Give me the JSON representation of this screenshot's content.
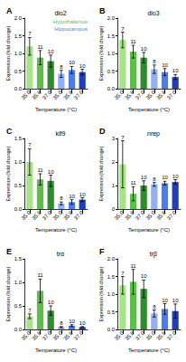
{
  "chart_data": [
    {
      "type": "bar",
      "panel_label": "A",
      "title": "dio2",
      "x_label": "Temperature (°C)",
      "y_label": "Expression (fold change)",
      "categories": [
        "35.0",
        "35.8",
        "37.0",
        "35.0",
        "35.8",
        "37.0"
      ],
      "ylim": [
        0,
        2
      ],
      "yticks": [
        {
          "value": 0,
          "label": "0.0"
        },
        0.5,
        {
          "value": 1,
          "label": "1.0"
        },
        1.5,
        {
          "value": 2,
          "label": "2.0"
        }
      ],
      "series": [
        {
          "name": "Hypothalamus",
          "colors": [
            "#a6e38a",
            "#5cbf47",
            "#2e8b2e"
          ],
          "values": [
            1.2,
            0.88,
            0.78,
            null,
            null,
            null
          ],
          "errors": [
            0.25,
            0.2,
            0.17,
            null,
            null,
            null
          ],
          "n": [
            7,
            11,
            10,
            null,
            null,
            null
          ]
        },
        {
          "name": "Hippocampus",
          "colors": [
            "#8fb0f5",
            "#4c7ce8",
            "#1f3fb8"
          ],
          "values": [
            null,
            null,
            null,
            0.42,
            0.53,
            0.47
          ],
          "errors": [
            null,
            null,
            null,
            0.1,
            0.1,
            0.08
          ],
          "n": [
            null,
            null,
            null,
            8,
            10,
            10
          ]
        }
      ]
    },
    {
      "type": "bar",
      "panel_label": "B",
      "title": "dio3",
      "x_label": "Temperature (°C)",
      "y_label": "Expression (fold change)",
      "categories": [
        "35.0",
        "35.8",
        "37.0",
        "35.0",
        "35.8",
        "37.0"
      ],
      "ylim": [
        0,
        2
      ],
      "yticks": [
        {
          "value": 0,
          "label": "0.0"
        },
        0.5,
        {
          "value": 1,
          "label": "1.0"
        },
        1.5,
        {
          "value": 2,
          "label": "2.0"
        }
      ],
      "series": [
        {
          "colors": [
            "#a6e38a",
            "#5cbf47",
            "#2e8b2e"
          ],
          "values": [
            1.38,
            1.05,
            0.88,
            null,
            null,
            null
          ],
          "errors": [
            0.22,
            0.18,
            0.15,
            null,
            null,
            null
          ],
          "n": [
            7,
            11,
            10,
            null,
            null,
            null
          ]
        },
        {
          "colors": [
            "#8fb0f5",
            "#4c7ce8",
            "#1f3fb8"
          ],
          "values": [
            null,
            null,
            null,
            0.55,
            0.47,
            0.33
          ],
          "errors": [
            null,
            null,
            null,
            0.12,
            0.1,
            0.07
          ],
          "n": [
            null,
            null,
            null,
            8,
            10,
            10
          ]
        }
      ]
    },
    {
      "type": "bar",
      "panel_label": "C",
      "title": "klf9",
      "x_label": "Temperature (°C)",
      "y_label": "Expression (fold change)",
      "categories": [
        "35.0",
        "35.8",
        "37.0",
        "35.0",
        "35.8",
        "37.0"
      ],
      "ylim": [
        0,
        1.5
      ],
      "yticks": [
        {
          "value": 0,
          "label": "0.0"
        },
        0.5,
        {
          "value": 1,
          "label": "1.0"
        },
        1.5
      ],
      "series": [
        {
          "colors": [
            "#a6e38a",
            "#5cbf47",
            "#2e8b2e"
          ],
          "values": [
            1.0,
            0.63,
            0.6,
            null,
            null,
            null
          ],
          "errors": [
            0.28,
            0.12,
            0.12,
            null,
            null,
            null
          ],
          "n": [
            7,
            11,
            10,
            null,
            null,
            null
          ]
        },
        {
          "colors": [
            "#8fb0f5",
            "#4c7ce8",
            "#1f3fb8"
          ],
          "values": [
            null,
            null,
            null,
            0.12,
            0.15,
            0.2
          ],
          "errors": [
            null,
            null,
            null,
            0.03,
            0.05,
            0.04
          ],
          "n": [
            null,
            null,
            null,
            8,
            10,
            10
          ]
        }
      ]
    },
    {
      "type": "bar",
      "panel_label": "D",
      "title": "nrep",
      "x_label": "Temperature (°C)",
      "y_label": "Expression (fold change)",
      "categories": [
        "35.0",
        "35.8",
        "37.0",
        "35.0",
        "35.8",
        "37.0"
      ],
      "ylim": [
        0,
        3
      ],
      "yticks": [
        0,
        1,
        2,
        3
      ],
      "series": [
        {
          "colors": [
            "#a6e38a",
            "#5cbf47",
            "#2e8b2e"
          ],
          "values": [
            1.9,
            0.65,
            1.0,
            null,
            null,
            null
          ],
          "errors": [
            1.0,
            0.3,
            0.2,
            null,
            null,
            null
          ],
          "n": [
            7,
            11,
            10,
            null,
            null,
            null
          ]
        },
        {
          "colors": [
            "#8fb0f5",
            "#4c7ce8",
            "#1f3fb8"
          ],
          "values": [
            null,
            null,
            null,
            1.05,
            1.1,
            1.15
          ],
          "errors": [
            null,
            null,
            null,
            0.08,
            0.08,
            0.1
          ],
          "n": [
            null,
            null,
            null,
            8,
            10,
            10
          ]
        }
      ]
    },
    {
      "type": "bar",
      "panel_label": "E",
      "title": "trα",
      "x_label": "Temperature (°C)",
      "y_label": "Expression (fold change)",
      "categories": [
        "35.0",
        "35.8",
        "37.0",
        "35.0",
        "35.8",
        "37.0"
      ],
      "ylim": [
        0,
        1.5
      ],
      "yticks": [
        {
          "value": 0,
          "label": "0.0"
        },
        0.5,
        {
          "value": 1,
          "label": "1.0"
        },
        1.5
      ],
      "series": [
        {
          "colors": [
            "#a6e38a",
            "#5cbf47",
            "#2e8b2e"
          ],
          "values": [
            0.28,
            0.82,
            0.4,
            null,
            null,
            null
          ],
          "errors": [
            0.05,
            0.25,
            0.1,
            null,
            null,
            null
          ],
          "n": [
            7,
            11,
            10,
            null,
            null,
            null
          ]
        },
        {
          "colors": [
            "#8fb0f5",
            "#4c7ce8",
            "#1f3fb8"
          ],
          "values": [
            null,
            null,
            null,
            0.05,
            0.08,
            0.05
          ],
          "errors": [
            null,
            null,
            null,
            0.01,
            0.02,
            0.01
          ],
          "n": [
            null,
            null,
            null,
            8,
            10,
            10
          ]
        }
      ]
    },
    {
      "type": "bar",
      "panel_label": "F",
      "title": "trβ",
      "x_label": "Temperature (°C)",
      "y_label": "Expression (fold change)",
      "categories": [
        "35.0",
        "35.8",
        "37.0",
        "35.0",
        "35.8",
        "37.0"
      ],
      "ylim": [
        0,
        2
      ],
      "yticks": [
        {
          "value": 0,
          "label": "0.0"
        },
        0.5,
        {
          "value": 1,
          "label": "1.0"
        },
        1.5,
        {
          "value": 2,
          "label": "2.0"
        }
      ],
      "series": [
        {
          "colors": [
            "#a6e38a",
            "#5cbf47",
            "#2e8b2e"
          ],
          "values": [
            1.25,
            1.35,
            1.15,
            null,
            null,
            null
          ],
          "errors": [
            0.25,
            0.35,
            0.25,
            null,
            null,
            null
          ],
          "n": [
            7,
            11,
            10,
            null,
            null,
            null
          ]
        },
        {
          "colors": [
            "#8fb0f5",
            "#4c7ce8",
            "#1f3fb8"
          ],
          "values": [
            null,
            null,
            null,
            0.45,
            0.58,
            0.52
          ],
          "errors": [
            null,
            null,
            null,
            0.1,
            0.15,
            0.2
          ],
          "n": [
            null,
            null,
            null,
            8,
            10,
            10
          ]
        }
      ]
    }
  ]
}
